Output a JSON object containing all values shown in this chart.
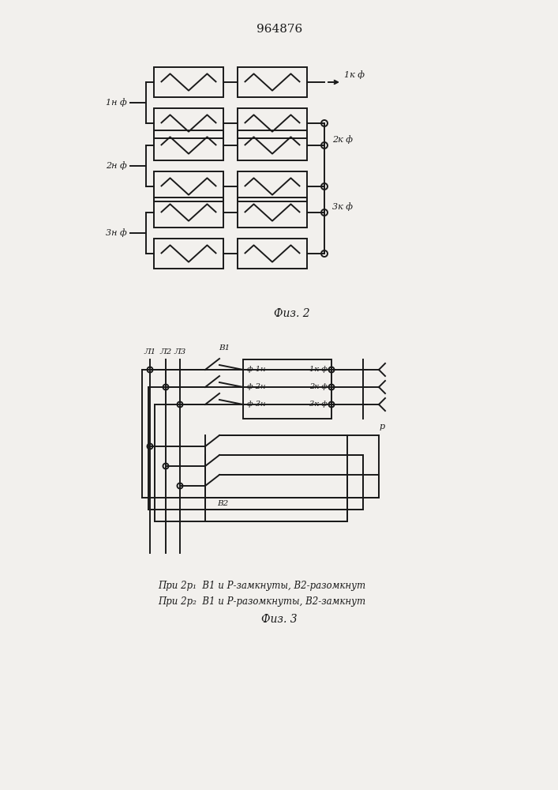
{
  "title": "964876",
  "fig2_label": "Физ. 2",
  "fig3_label": "Физ. 3",
  "caption_line1": "При 2р₁  В1 и Р-замкнуты, В2-разомкнут",
  "caption_line2": "При 2р₂  В1 и Р-разомкнуты, В2-замкнут",
  "bg_color": "#f2f0ed",
  "line_color": "#1a1a1a",
  "lw": 1.4
}
